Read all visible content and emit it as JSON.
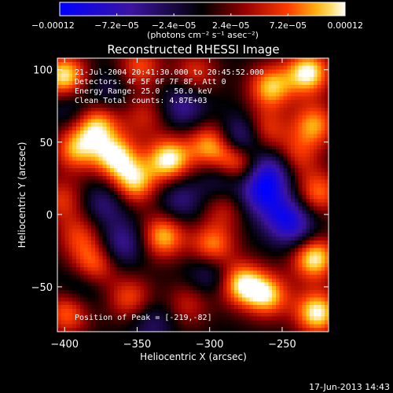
{
  "chart_data": {
    "type": "heatmap",
    "title": "Reconstructed RHESSI Image",
    "xlabel": "Heliocentric X (arcsec)",
    "ylabel": "Heliocentric Y (arcsec)",
    "xlim": [
      -405,
      -218
    ],
    "ylim": [
      -81,
      108
    ],
    "x_ticks": [
      -400,
      -350,
      -300,
      -250
    ],
    "y_ticks": [
      -50,
      0,
      50,
      100
    ],
    "x_tick_labels": [
      "−400",
      "−350",
      "−300",
      "−250"
    ],
    "y_tick_labels": [
      "−50",
      "0",
      "50",
      "100"
    ],
    "colorbar": {
      "min": -0.00012,
      "max": 0.00012,
      "ticks": [
        -0.00012,
        -7.2e-05,
        -2.4e-05,
        2.4e-05,
        7.2e-05,
        0.00012
      ],
      "tick_labels": [
        "−0.00012",
        "−7.2e−05",
        "−2.4e−05",
        "2.4e−05",
        "7.2e−05",
        "0.00012"
      ],
      "unit_label": "(photons cm⁻² s⁻¹ asec⁻²)"
    },
    "annotations": [
      "21-Jul-2004 20:41:30.000 to 20:45:52.000",
      "Detectors: 4F 5F 6F 7F 8F, Att 0",
      "Energy Range: 25.0 - 50.0 keV",
      "Clean    Total counts: 4.87E+03",
      "Position of Peak = [-219,-82]"
    ],
    "peak": [
      -219,
      -82
    ],
    "sources": [
      {
        "x": -400,
        "y": 95,
        "value": 0.00012
      },
      {
        "x": -378,
        "y": 62,
        "value": 0.0001
      },
      {
        "x": -392,
        "y": 45,
        "value": 9e-05
      },
      {
        "x": -365,
        "y": 40,
        "value": 0.00011
      },
      {
        "x": -352,
        "y": 22,
        "value": 0.0001
      },
      {
        "x": -328,
        "y": 38,
        "value": 0.00012
      },
      {
        "x": -300,
        "y": 48,
        "value": 9e-05
      },
      {
        "x": -282,
        "y": 36,
        "value": 0.00011
      },
      {
        "x": -258,
        "y": 88,
        "value": 0.0001
      },
      {
        "x": -232,
        "y": 98,
        "value": 0.00012
      },
      {
        "x": -228,
        "y": 62,
        "value": 9e-05
      },
      {
        "x": -262,
        "y": 58,
        "value": 7e-05
      },
      {
        "x": -332,
        "y": -15,
        "value": 0.0001
      },
      {
        "x": -298,
        "y": -22,
        "value": 9e-05
      },
      {
        "x": -278,
        "y": -48,
        "value": 0.00011
      },
      {
        "x": -260,
        "y": -56,
        "value": 0.0001
      },
      {
        "x": -228,
        "y": -30,
        "value": 0.00012
      },
      {
        "x": -226,
        "y": -68,
        "value": 0.00012
      },
      {
        "x": -380,
        "y": -35,
        "value": 8e-05
      },
      {
        "x": -355,
        "y": -58,
        "value": 7e-05
      },
      {
        "x": -398,
        "y": -68,
        "value": 8e-05
      },
      {
        "x": -348,
        "y": 102,
        "value": 7e-05
      },
      {
        "x": -225,
        "y": 15,
        "value": 8e-05
      },
      {
        "x": -402,
        "y": 10,
        "value": 6e-05
      },
      {
        "x": -390,
        "y": -15,
        "value": 6e-05
      },
      {
        "x": -345,
        "y": 68,
        "value": 5e-05
      },
      {
        "x": -240,
        "y": 40,
        "value": 6e-05
      },
      {
        "x": -310,
        "y": 98,
        "value": 6e-05
      },
      {
        "x": -315,
        "y": -62,
        "value": 5e-05
      },
      {
        "x": -290,
        "y": 5,
        "value": 5e-05
      },
      {
        "x": -265,
        "y": 15,
        "value": -8e-05
      },
      {
        "x": -278,
        "y": 52,
        "value": -9e-05
      },
      {
        "x": -250,
        "y": 0,
        "value": -7e-05
      },
      {
        "x": -258,
        "y": 30,
        "value": -8e-05
      },
      {
        "x": -290,
        "y": 25,
        "value": -6e-05
      },
      {
        "x": -320,
        "y": 10,
        "value": -5e-05
      },
      {
        "x": -318,
        "y": 75,
        "value": -6e-05
      },
      {
        "x": -360,
        "y": -20,
        "value": -6e-05
      },
      {
        "x": -372,
        "y": 8,
        "value": -5e-05
      },
      {
        "x": -300,
        "y": -40,
        "value": -5e-05
      },
      {
        "x": -240,
        "y": -10,
        "value": -6e-05
      },
      {
        "x": -388,
        "y": -50,
        "value": -4e-05
      },
      {
        "x": -395,
        "y": 75,
        "value": -4e-05
      },
      {
        "x": -340,
        "y": -75,
        "value": -4e-05
      },
      {
        "x": -370,
        "y": 85,
        "value": -3e-05
      }
    ]
  },
  "footer": {
    "timestamp": "17-Jun-2013 14:43"
  }
}
